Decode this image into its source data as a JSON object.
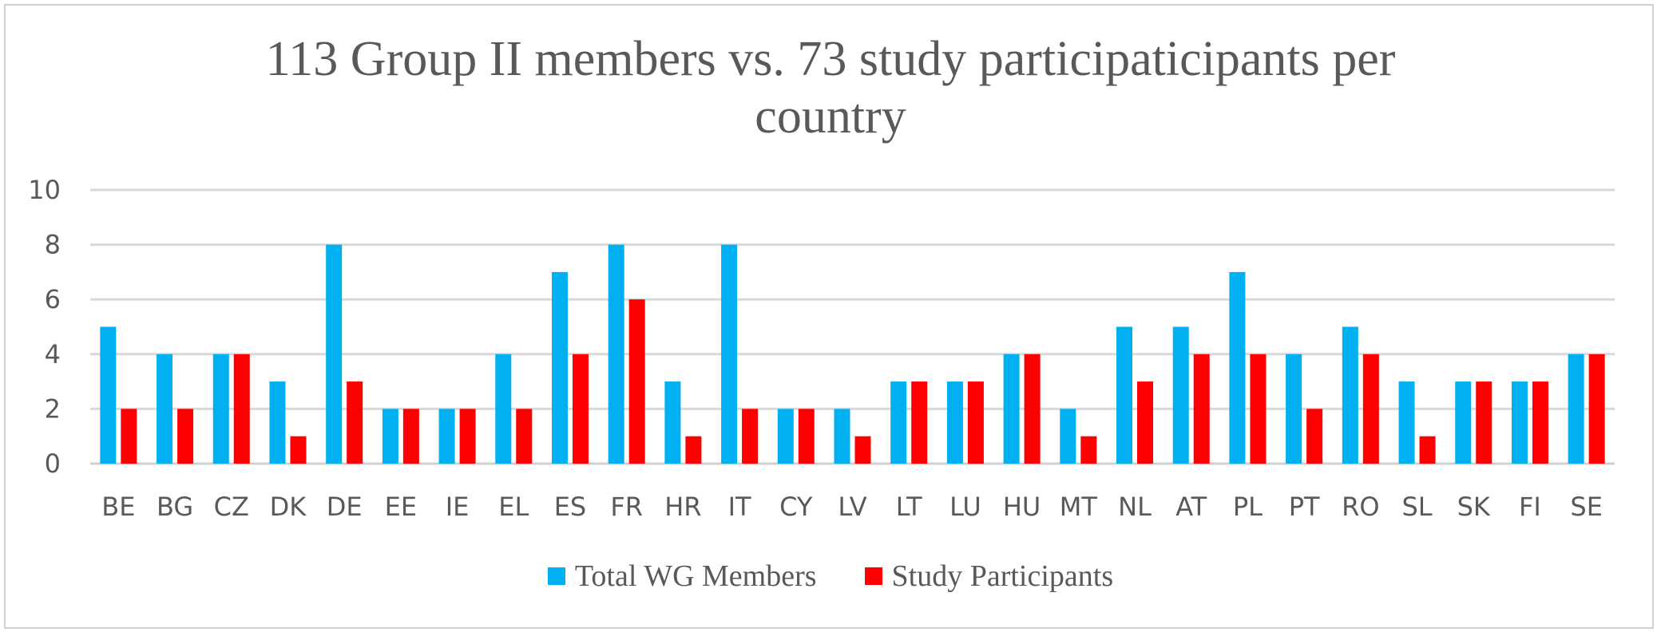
{
  "chart_data": {
    "type": "bar",
    "title_lines": [
      "113 Group II members vs. 73 study participaticipants per",
      "country"
    ],
    "categories": [
      "BE",
      "BG",
      "CZ",
      "DK",
      "DE",
      "EE",
      "IE",
      "EL",
      "ES",
      "FR",
      "HR",
      "IT",
      "CY",
      "LV",
      "LT",
      "LU",
      "HU",
      "MT",
      "NL",
      "AT",
      "PL",
      "PT",
      "RO",
      "SL",
      "SK",
      "FI",
      "SE"
    ],
    "series": [
      {
        "name": "Total WG Members",
        "color": "#00B0F0",
        "values": [
          5,
          4,
          4,
          3,
          8,
          2,
          2,
          4,
          7,
          8,
          3,
          8,
          2,
          2,
          3,
          3,
          4,
          2,
          5,
          5,
          7,
          4,
          5,
          3,
          3,
          3,
          4
        ]
      },
      {
        "name": "Study Participants",
        "color": "#FF0000",
        "values": [
          2,
          2,
          4,
          1,
          3,
          2,
          2,
          2,
          4,
          6,
          1,
          2,
          2,
          1,
          3,
          3,
          4,
          1,
          3,
          4,
          4,
          2,
          4,
          1,
          3,
          3,
          4
        ]
      }
    ],
    "ylim": [
      0,
      10
    ],
    "yticks": [
      0,
      2,
      4,
      6,
      8,
      10
    ],
    "grid": true,
    "legend_position": "bottom"
  }
}
